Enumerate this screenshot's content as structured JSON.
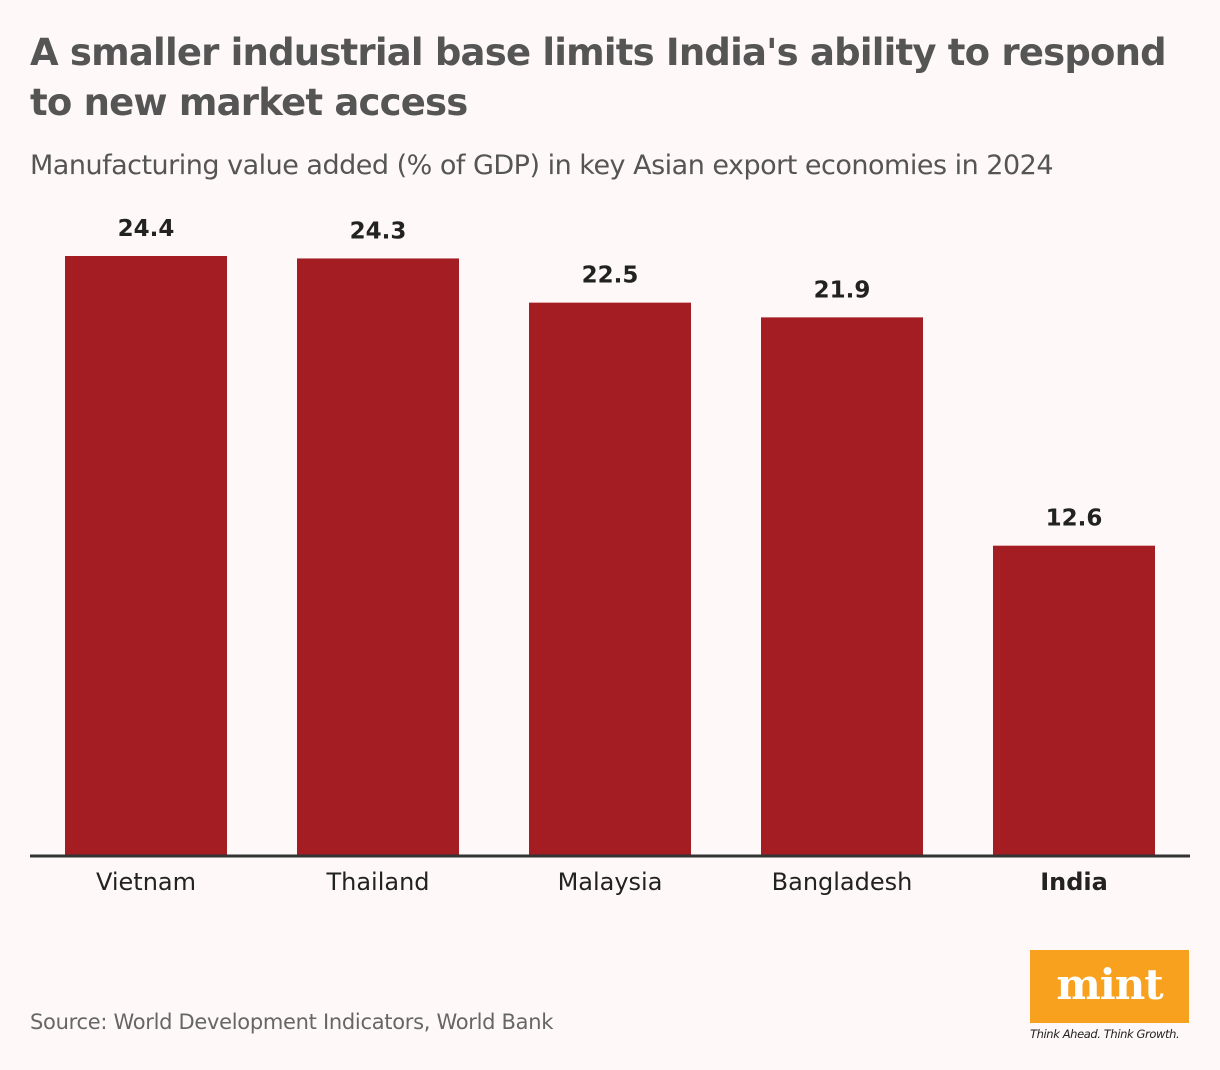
{
  "title": "A smaller industrial base limits India's ability to respond to new market access",
  "subtitle": "Manufacturing value added (% of GDP) in key Asian export economies in 2024",
  "source": "Source: World Development Indicators, World Bank",
  "logo": {
    "text": "mint",
    "tagline": "Think Ahead. Think Growth.",
    "color": "#f7a11f"
  },
  "chart_data": {
    "type": "bar",
    "title": "A smaller industrial base limits India's ability to respond to new market access",
    "subtitle": "Manufacturing value added (% of GDP) in key Asian export economies in 2024",
    "categories": [
      "Vietnam",
      "Thailand",
      "Malaysia",
      "Bangladesh",
      "India"
    ],
    "values": [
      24.4,
      24.3,
      22.5,
      21.9,
      12.6
    ],
    "highlight": "India",
    "bar_color": "#a31d22",
    "ylim": [
      0,
      24.4
    ],
    "grid": false,
    "y_axis_shown": false,
    "data_labels": true
  }
}
